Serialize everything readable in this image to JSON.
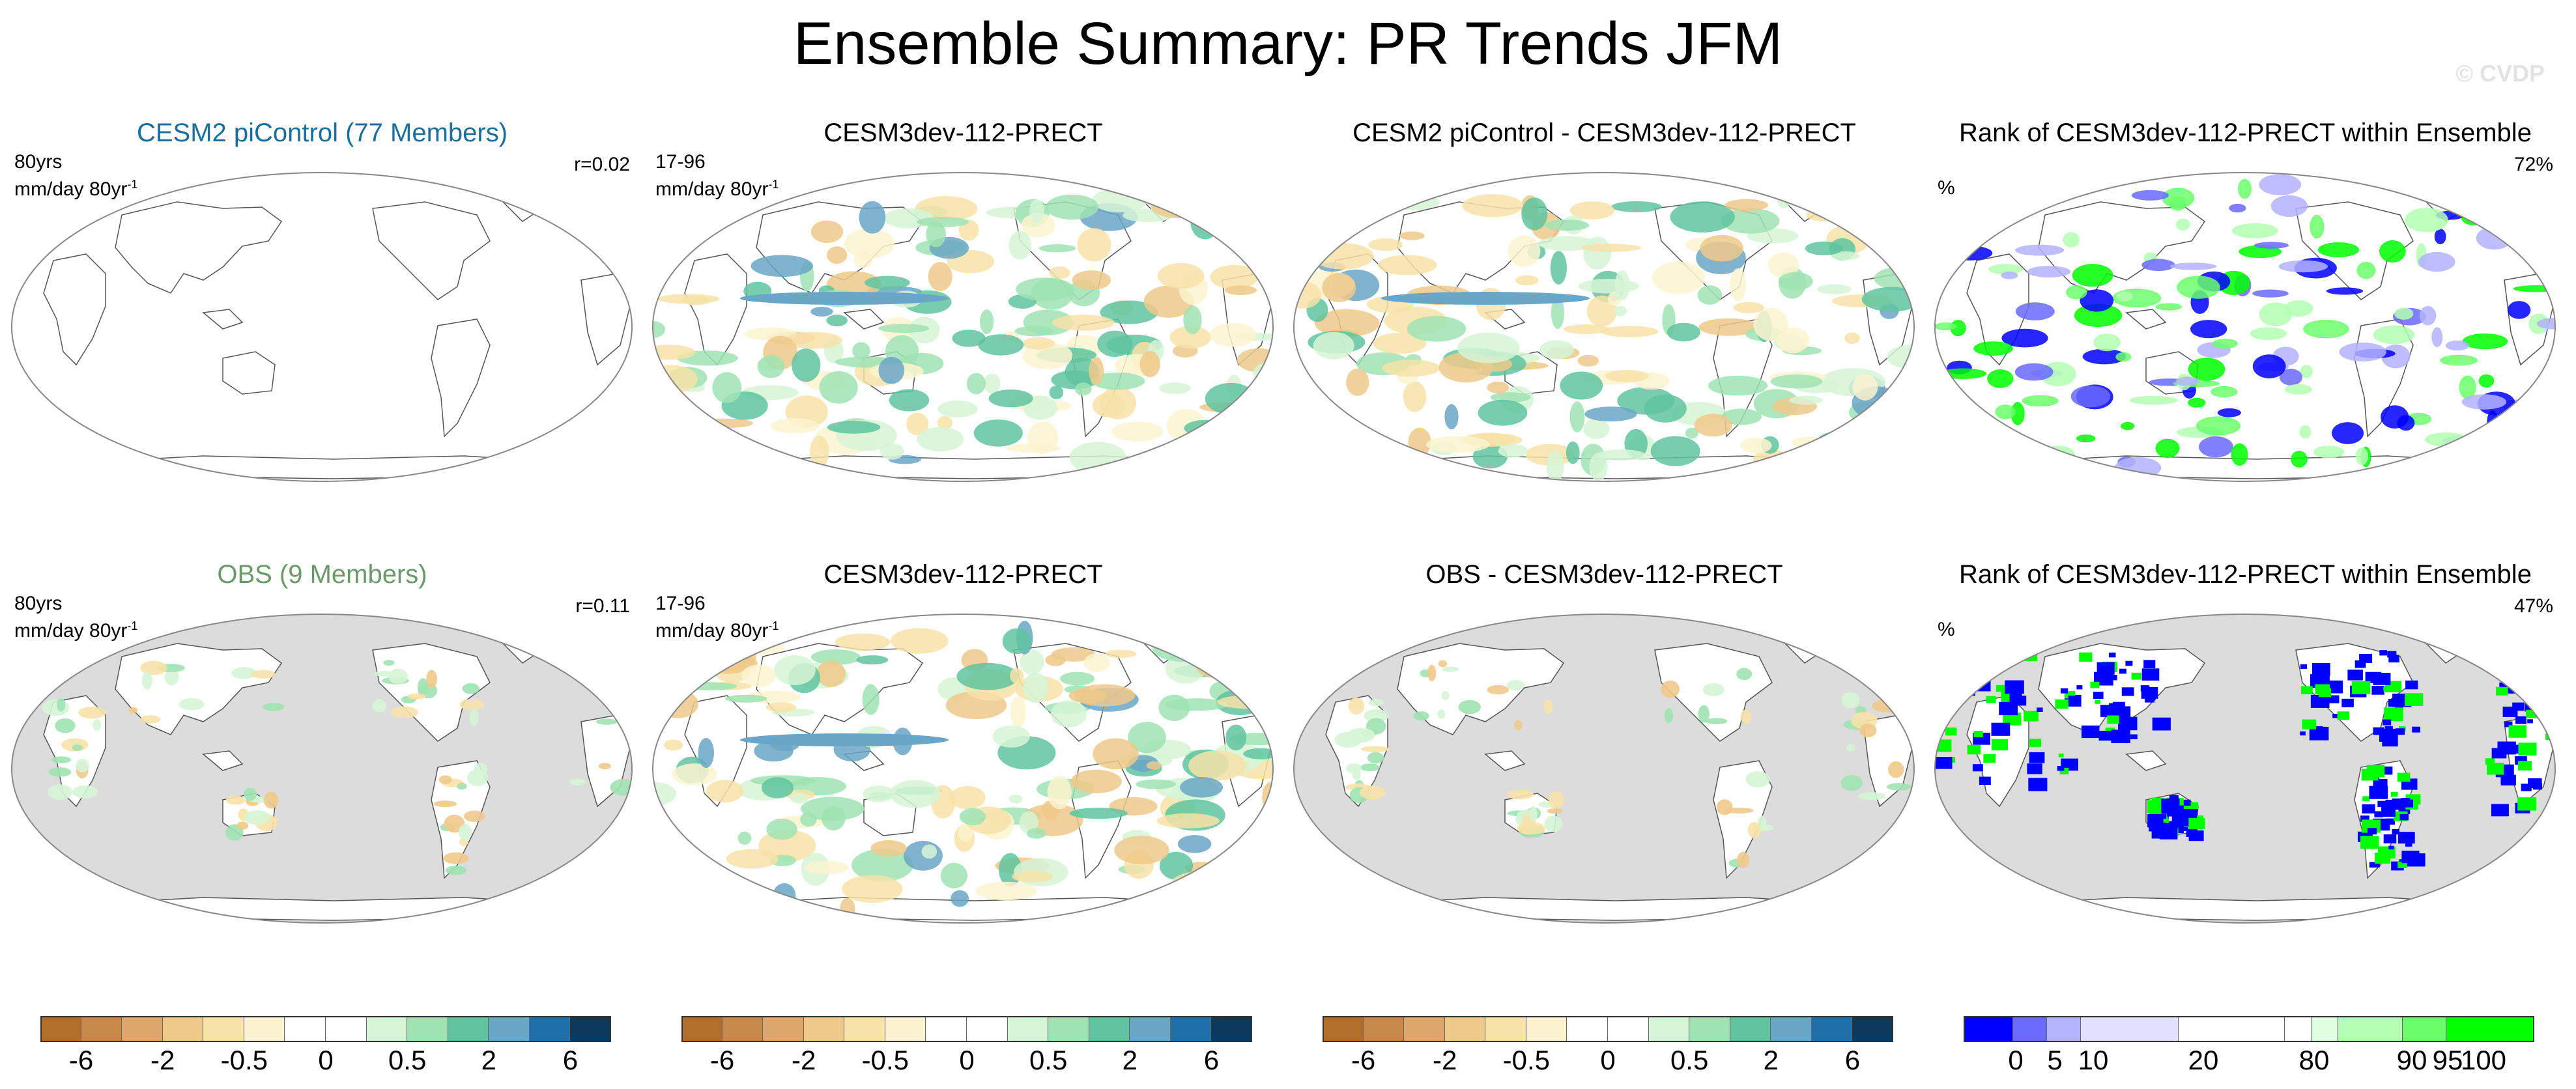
{
  "title": "Ensemble Summary: PR Trends JFM",
  "watermark": "© CVDP",
  "colors": {
    "ocean_gray": "#dcdcdc",
    "cesm2_title": "#1b6f9a",
    "obs_title": "#6a9a6a",
    "diverging_scale": [
      "#b06e2a",
      "#c88a4a",
      "#dda66a",
      "#efc98a",
      "#f7e2a8",
      "#fbf3cf",
      "#ffffff",
      "#ffffff",
      "#d6f5d6",
      "#9fe3b3",
      "#5fc49f",
      "#6aa6c6",
      "#1f6fa8",
      "#0b3a5c"
    ],
    "rank_scale": [
      "#0000ff",
      "#6a6aff",
      "#b3b3ff",
      "#e1e1ff",
      "#ffffff",
      "#ffffff",
      "#e0ffe0",
      "#b3ffb3",
      "#6aff6a",
      "#00ff00"
    ]
  },
  "panels": [
    {
      "title": "CESM2 piControl (77 Members)",
      "left_line1": "80yrs",
      "left_line2": "mm/day 80yr",
      "sup": "-1",
      "right": "r=0.02"
    },
    {
      "title": "CESM3dev-112-PRECT",
      "left_line1": "17-96",
      "left_line2": "mm/day 80yr",
      "sup": "-1",
      "right": ""
    },
    {
      "title": "CESM2 piControl - CESM3dev-112-PRECT",
      "left_line1": "",
      "left_line2": "",
      "sup": "",
      "right": ""
    },
    {
      "title": "Rank of CESM3dev-112-PRECT within Ensemble",
      "left_line1": "%",
      "left_line2": "",
      "sup": "",
      "right": "72%"
    },
    {
      "title": "OBS (9 Members)",
      "left_line1": "80yrs",
      "left_line2": "mm/day 80yr",
      "sup": "-1",
      "right": "r=0.11"
    },
    {
      "title": "CESM3dev-112-PRECT",
      "left_line1": "17-96",
      "left_line2": "mm/day 80yr",
      "sup": "-1",
      "right": ""
    },
    {
      "title": "OBS - CESM3dev-112-PRECT",
      "left_line1": "",
      "left_line2": "",
      "sup": "",
      "right": ""
    },
    {
      "title": "Rank of CESM3dev-112-PRECT within Ensemble",
      "left_line1": "%",
      "left_line2": "",
      "sup": "",
      "right": "47%"
    }
  ],
  "colorbars": {
    "trend_labels": [
      "-6",
      "-2",
      "-0.5",
      "0",
      "0.5",
      "2",
      "6"
    ],
    "rank_labels": [
      "0",
      "5",
      "10",
      "20",
      "80",
      "90",
      "95",
      "100"
    ]
  }
}
